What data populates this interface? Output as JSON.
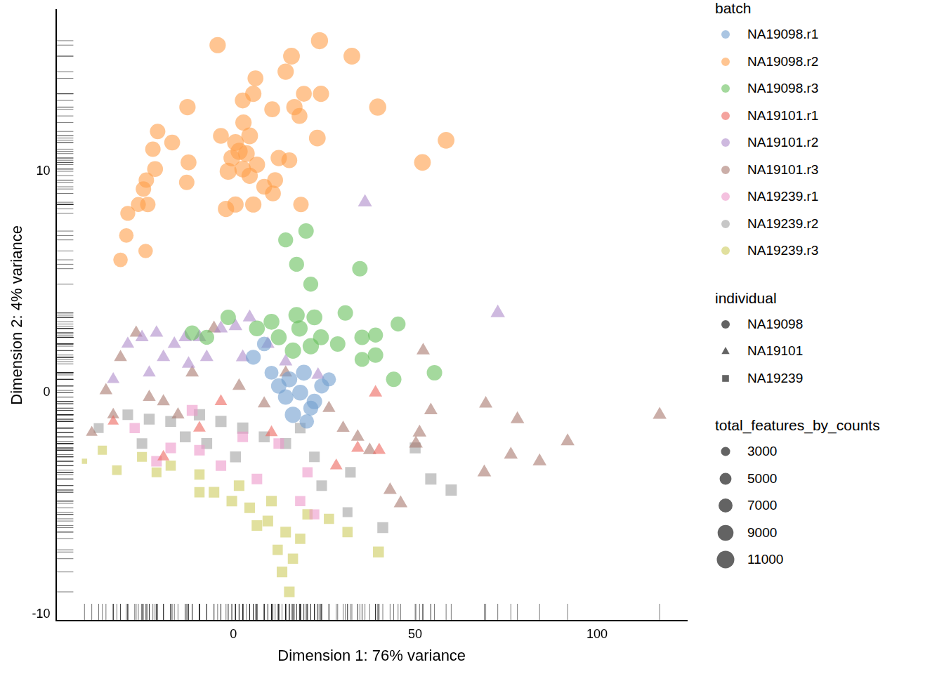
{
  "chart_data": {
    "type": "scatter",
    "x_label": "Dimension 1: 76% variance",
    "y_label": "Dimension 2: 4% variance",
    "xlim": [
      -48.6,
      124.7
    ],
    "ylim": [
      -10.3,
      17.3
    ],
    "xticks": [
      0,
      50,
      100
    ],
    "yticks": [
      -10,
      0,
      10
    ],
    "grid": false,
    "legend": "right",
    "color_legend_title": "batch",
    "shape_legend": {
      "title": "individual",
      "items": [
        {
          "name": "NA19098",
          "marker": "circle"
        },
        {
          "name": "NA19101",
          "marker": "triangle"
        },
        {
          "name": "NA19239",
          "marker": "square"
        }
      ]
    },
    "size_legend": {
      "title": "total_features_by_counts",
      "values": [
        3000,
        5000,
        7000,
        9000,
        11000
      ]
    },
    "series": [
      {
        "name": "NA19098.r1",
        "color": "#729ECE",
        "marker": "circle",
        "x": [
          18.4,
          14.4,
          21.3,
          16.4,
          20.2,
          24.3,
          12.5,
          26.3,
          19.4,
          8.5,
          5.5,
          22.3,
          15.4,
          10.5
        ],
        "y": [
          0,
          -0.2,
          -0.7,
          -1,
          -1.3,
          0.3,
          0.3,
          0.6,
          0.9,
          2.2,
          1.6,
          -0.4,
          0.6,
          0.9
        ],
        "size": [
          9000,
          8500,
          8000,
          9500,
          7500,
          8000,
          8500,
          7000,
          9000,
          7500,
          8000,
          8500,
          9000,
          7000
        ]
      },
      {
        "name": "NA19098.r2",
        "color": "#FF9E4A",
        "marker": "circle",
        "x": [
          -4.3,
          23.7,
          32.6,
          16,
          14.4,
          6.1,
          5.5,
          19.4,
          24.1,
          2.6,
          10.7,
          16.8,
          39.7,
          -12.6,
          18.2,
          2.8,
          -20.8,
          -3.4,
          23.1,
          58.5,
          -16.8,
          -22.1,
          0.6,
          4.5,
          12.5,
          15.4,
          52,
          -12.3,
          -21.5,
          -1.4,
          2.6,
          6.5,
          11.5,
          -12.8,
          -23.9,
          -24.7,
          -26.1,
          -29,
          -23.5,
          -2,
          0.6,
          5.5,
          10.9,
          18.6,
          -29.4,
          -24.1,
          -31,
          1.6,
          3.6,
          -0.4,
          4.5,
          8.5
        ],
        "y": [
          15.7,
          15.9,
          15.2,
          15.2,
          14.5,
          14.2,
          13.5,
          13.5,
          13.5,
          13.2,
          12.8,
          12.9,
          12.9,
          12.9,
          12.5,
          12.2,
          11.8,
          11.6,
          11.5,
          11.4,
          11.3,
          11,
          11.3,
          11.6,
          10.6,
          10.5,
          10.4,
          10.4,
          10.1,
          10,
          10.1,
          10.3,
          9.6,
          9.5,
          9.6,
          9.2,
          8.5,
          8.1,
          8.5,
          8.3,
          8.5,
          8.5,
          9,
          8.5,
          7.1,
          6.4,
          6,
          10.9,
          10.8,
          10.6,
          9.8,
          9.3
        ],
        "size": [
          9500,
          10500,
          10000,
          10000,
          9500,
          9000,
          9500,
          9000,
          9500,
          9000,
          9000,
          9500,
          10500,
          9500,
          9000,
          9500,
          8500,
          9000,
          10000,
          10000,
          9000,
          8500,
          10000,
          10000,
          9500,
          9000,
          10000,
          9000,
          9000,
          10500,
          10000,
          9500,
          9000,
          8500,
          8500,
          8500,
          8000,
          8000,
          8500,
          9500,
          9500,
          9500,
          9000,
          8500,
          7500,
          7500,
          7500,
          10500,
          10000,
          10000,
          9500,
          9000
        ]
      },
      {
        "name": "NA19098.r3",
        "color": "#67BF5C",
        "marker": "circle",
        "x": [
          20,
          14.4,
          17.4,
          34.8,
          21.3,
          17.4,
          22.3,
          30.8,
          45.3,
          18.2,
          24.1,
          35.4,
          39.1,
          28.7,
          35.4,
          39.1,
          55.3,
          44.1,
          12.5,
          -11.3,
          -1.4,
          6.5,
          16.4,
          21.3,
          10.5,
          -7.3
        ],
        "y": [
          7.3,
          6.9,
          5.8,
          5.6,
          4.9,
          3.5,
          3.4,
          3.6,
          3.1,
          2.9,
          2.5,
          2.5,
          2.6,
          2.2,
          1.5,
          1.7,
          0.9,
          0.6,
          2.5,
          2.7,
          3.4,
          2.9,
          1.9,
          2.1,
          3.2,
          2.5
        ],
        "size": [
          8500,
          8000,
          8000,
          8500,
          8000,
          9500,
          9000,
          8500,
          8000,
          9500,
          9000,
          8500,
          8000,
          8500,
          8000,
          8500,
          8500,
          8500,
          9000,
          8000,
          8500,
          9000,
          9500,
          9500,
          9000,
          8000
        ]
      },
      {
        "name": "NA19101.r1",
        "color": "#ED665D",
        "marker": "triangle",
        "x": [
          39.1,
          40.1,
          28.3,
          34.2,
          -33,
          -19.2,
          -9.3,
          10.5,
          -3.4
        ],
        "y": [
          0,
          -2.6,
          -3.3,
          -2.5,
          -1.3,
          -2.9,
          -1.6,
          -1.8,
          -0.4
        ],
        "size": [
          8500,
          8000,
          7500,
          8000,
          6000,
          7000,
          7500,
          7500,
          7500
        ]
      },
      {
        "name": "NA19101.r2",
        "color": "#AD8BC9",
        "marker": "triangle",
        "x": [
          36.2,
          72.7,
          -29,
          -25.1,
          -21.1,
          -16.2,
          -9.3,
          -3.4,
          4.5,
          0.6,
          -19.2,
          -12.3,
          -7.3,
          9.5,
          23.3,
          14.4,
          -23.1,
          -33,
          2.6,
          -13.2
        ],
        "y": [
          8.6,
          3.6,
          2.2,
          2.5,
          2.7,
          2.2,
          2.5,
          2.9,
          3.4,
          3,
          1.6,
          1.3,
          1.6,
          2.2,
          0.8,
          1.4,
          0.9,
          0.6,
          1.6,
          2.5
        ],
        "size": [
          9500,
          10000,
          8000,
          8500,
          8500,
          8500,
          9000,
          9000,
          9000,
          9000,
          8500,
          8500,
          8500,
          8500,
          8500,
          8500,
          8000,
          7500,
          9000,
          8500
        ]
      },
      {
        "name": "NA19101.r3",
        "color": "#A8786E",
        "marker": "triangle",
        "x": [
          117.2,
          91.9,
          84.2,
          78.1,
          69.4,
          76.3,
          69,
          54.3,
          52.2,
          51.2,
          50.2,
          46,
          43.1,
          37.5,
          34.2,
          30.2,
          26.3,
          -26.7,
          -35,
          -38.9,
          -31,
          -5.3,
          -11.3,
          -19.2,
          1.6,
          8.5,
          -15.2,
          14.4,
          -33,
          -23.1
        ],
        "y": [
          -1,
          -2.2,
          -3.1,
          -1.2,
          -0.5,
          -2.8,
          -3.6,
          -0.8,
          1.9,
          -1.8,
          -2.3,
          -5,
          -4.4,
          -2.6,
          -2,
          -1.6,
          -0.7,
          2.7,
          0.1,
          -1.8,
          1.6,
          2.9,
          0.9,
          -0.4,
          0.3,
          -0.5,
          -1,
          0.9,
          -1,
          -0.2
        ],
        "size": [
          9000,
          9000,
          9000,
          9000,
          8500,
          9000,
          9000,
          8500,
          8500,
          9000,
          9000,
          9000,
          8500,
          8500,
          8500,
          8000,
          8000,
          8000,
          8000,
          6500,
          8000,
          9000,
          8500,
          8000,
          8500,
          8000,
          8000,
          8000,
          7000,
          8000
        ]
      },
      {
        "name": "NA19239.r1",
        "color": "#ED97CA",
        "marker": "square",
        "x": [
          -27.1,
          -21.1,
          -11.3,
          -9.3,
          2.6,
          12.5,
          20.4,
          18.4,
          22.3,
          6.5,
          -3.4,
          -17.2
        ],
        "y": [
          -1.6,
          -3.1,
          -0.8,
          -2.6,
          -2,
          -2.3,
          -3.6,
          -4.9,
          -5.5,
          -3.9,
          -3.3,
          -2.5
        ],
        "size": [
          7500,
          8000,
          8500,
          8000,
          8000,
          8000,
          7500,
          7500,
          7000,
          8000,
          8000,
          8000
        ]
      },
      {
        "name": "NA19239.r2",
        "color": "#A2A2A2",
        "marker": "square",
        "x": [
          -37,
          -29,
          -23.1,
          -17.2,
          -9.3,
          -3.4,
          2.6,
          8.5,
          14.4,
          0.6,
          -7.3,
          -13.2,
          18.4,
          24.3,
          32.2,
          31.4,
          41.1,
          50,
          54.3,
          59.9,
          22.3,
          -25.1
        ],
        "y": [
          -1.6,
          -1,
          -1.2,
          -1.3,
          -1,
          -1.3,
          -1.6,
          -2,
          -2.3,
          -2.9,
          -2.3,
          -2,
          -1.6,
          -4.2,
          -3.6,
          -5.4,
          -6.1,
          -2.5,
          -3.9,
          -4.4,
          -2.9,
          -2.3
        ],
        "size": [
          7000,
          8000,
          8500,
          8500,
          9000,
          9000,
          9000,
          8500,
          8500,
          8500,
          8500,
          8500,
          8000,
          8000,
          8000,
          7000,
          8500,
          8500,
          9000,
          9000,
          8000,
          8000
        ]
      },
      {
        "name": "NA19239.r3",
        "color": "#CDCC5D",
        "marker": "square",
        "x": [
          -40.9,
          -36,
          -32,
          -25.1,
          -17.2,
          -9.3,
          -5.3,
          -0.4,
          4.5,
          9.5,
          14.4,
          18.4,
          12.2,
          13.4,
          15.4,
          6.5,
          20.4,
          26.3,
          31.4,
          39.9,
          1.6,
          -9.3,
          10.5,
          16.4,
          -21.1
        ],
        "y": [
          -3.1,
          -2.6,
          -3.5,
          -2.9,
          -3.3,
          -3.7,
          -4.5,
          -4.9,
          -5.2,
          -5.8,
          -6.3,
          -6.6,
          -7.1,
          -8.1,
          -9,
          -6,
          -5.5,
          -5.7,
          -6.3,
          -7.2,
          -4.2,
          -4.5,
          -4.9,
          -7.5,
          -3.6
        ],
        "size": [
          2000,
          6000,
          6500,
          7000,
          7500,
          7500,
          8000,
          8000,
          8000,
          8000,
          8000,
          7500,
          7500,
          8000,
          8000,
          8000,
          7500,
          7500,
          7500,
          8500,
          8000,
          7500,
          8000,
          7500,
          7000
        ]
      }
    ]
  }
}
